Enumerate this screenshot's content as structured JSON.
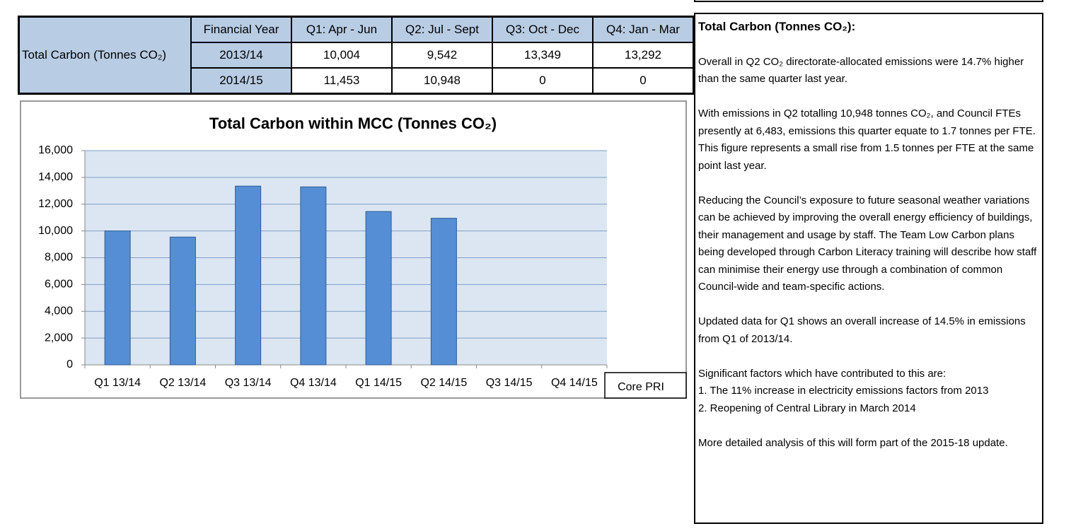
{
  "table": {
    "row_header": "Total Carbon (Tonnes CO₂)",
    "columns": [
      "Financial Year",
      "Q1: Apr - Jun",
      "Q2: Jul - Sept",
      "Q3: Oct - Dec",
      "Q4: Jan - Mar"
    ],
    "rows": [
      [
        "2013/14",
        "10,004",
        "9,542",
        "13,349",
        "13,292"
      ],
      [
        "2014/15",
        "11,453",
        "10,948",
        "0",
        "0"
      ]
    ]
  },
  "chart_data": {
    "type": "bar",
    "title": "Total Carbon within MCC (Tonnes CO₂)",
    "categories": [
      "Q1 13/14",
      "Q2 13/14",
      "Q3 13/14",
      "Q4 13/14",
      "Q1 14/15",
      "Q2 14/15",
      "Q3 14/15",
      "Q4 14/15"
    ],
    "values": [
      10004,
      9542,
      13349,
      13292,
      11453,
      10948,
      0,
      0
    ],
    "color": "#558ed5",
    "ylim": [
      0,
      16000
    ],
    "yticks": [
      0,
      {
        "value": 2000,
        "label": "2,000"
      },
      {
        "value": 4000,
        "label": "4,000"
      },
      {
        "value": 6000,
        "label": "6,000"
      },
      {
        "value": 8000,
        "label": "8,000"
      },
      {
        "value": 10000,
        "label": "10,000"
      },
      {
        "value": 12000,
        "label": "12,000"
      },
      {
        "value": 14000,
        "label": "14,000"
      },
      {
        "value": 16000,
        "label": "16,000"
      }
    ],
    "grid": true,
    "annotation": "Core PRI"
  },
  "notes": {
    "title": "Total Carbon (Tonnes CO₂):",
    "paragraphs": [
      "Overall in Q2 CO₂ directorate-allocated emissions were 14.7% higher than the same quarter last year.",
      "With emissions in Q2 totalling 10,948 tonnes CO₂, and Council FTEs presently at 6,483, emissions this quarter equate to 1.7 tonnes per FTE. This figure represents a small rise from 1.5 tonnes per FTE at the same point last year.",
      "Reducing the Council’s exposure to future seasonal weather variations can be achieved by improving the overall energy efficiency of buildings, their management and usage by staff. The Team Low Carbon plans being developed through Carbon Literacy training will describe how staff can minimise their energy use through a combination of common Council-wide and team-specific actions.",
      "Updated data for Q1 shows an overall increase of 14.5% in emissions from Q1 of 2013/14."
    ],
    "factors": [
      "Significant factors which have contributed to this are:",
      "1. The 11% increase in electricity emissions factors from 2013",
      "2. Reopening of Central Library in March 2014"
    ],
    "closing": "More detailed analysis of this will form part of the 2015-18 update."
  }
}
